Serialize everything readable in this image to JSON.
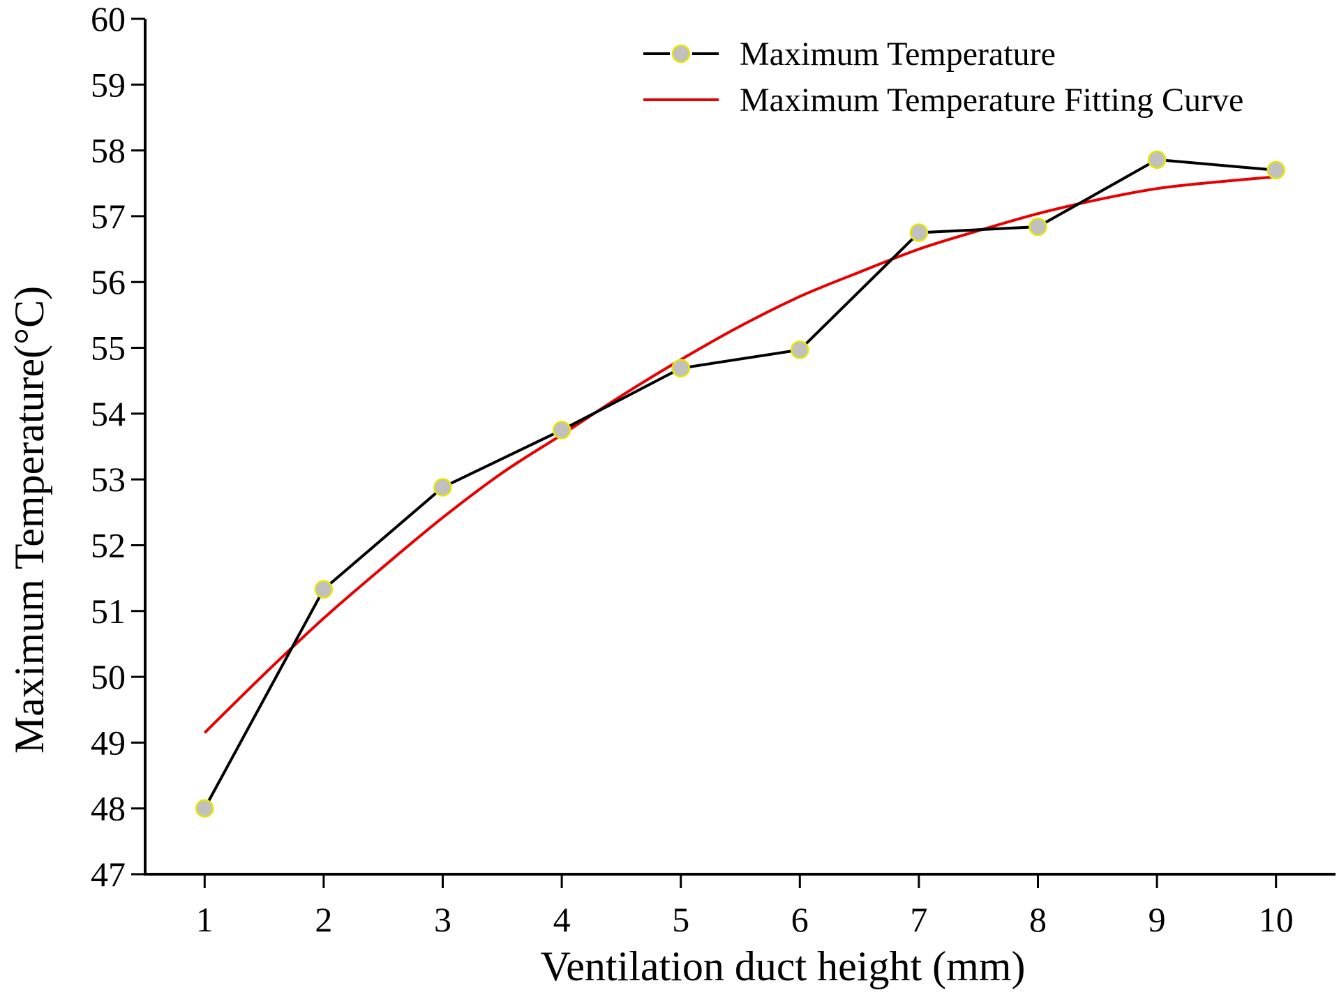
{
  "chart_data": {
    "type": "line",
    "title": "",
    "xlabel": "Ventilation duct height (mm)",
    "ylabel": "Maximum Temperature(°C)",
    "xlim": [
      0.5,
      10.5
    ],
    "ylim": [
      47,
      60
    ],
    "x_ticks": [
      "1",
      "2",
      "3",
      "4",
      "5",
      "6",
      "7",
      "8",
      "9",
      "10"
    ],
    "y_ticks": [
      "47",
      "48",
      "49",
      "50",
      "51",
      "52",
      "53",
      "54",
      "55",
      "56",
      "57",
      "58",
      "59",
      "60"
    ],
    "x": [
      1,
      2,
      3,
      4,
      5,
      6,
      7,
      8,
      9,
      10
    ],
    "series": [
      {
        "name": "Maximum Temperature",
        "type": "line+marker",
        "color": "#000000",
        "marker_fill": "#c0c0c0",
        "marker_edge": "#e6e600",
        "values": [
          48.0,
          51.33,
          52.88,
          53.75,
          54.69,
          54.97,
          56.75,
          56.84,
          57.86,
          57.7
        ]
      },
      {
        "name": "Maximum Temperature Fitting Curve",
        "type": "curve",
        "color": "#e60000",
        "x": [
          1,
          1.5,
          2,
          2.5,
          3,
          3.5,
          4,
          4.5,
          5,
          5.5,
          6,
          6.5,
          7,
          7.5,
          8,
          8.5,
          9,
          9.5,
          10
        ],
        "values": [
          49.15,
          50.04,
          50.89,
          51.67,
          52.42,
          53.1,
          53.68,
          54.27,
          54.82,
          55.33,
          55.78,
          56.15,
          56.5,
          56.78,
          57.04,
          57.25,
          57.42,
          57.52,
          57.6
        ]
      }
    ],
    "legend": {
      "position": "top-right",
      "entries": [
        "Maximum Temperature",
        "Maximum Temperature Fitting Curve"
      ]
    },
    "grid": false
  }
}
